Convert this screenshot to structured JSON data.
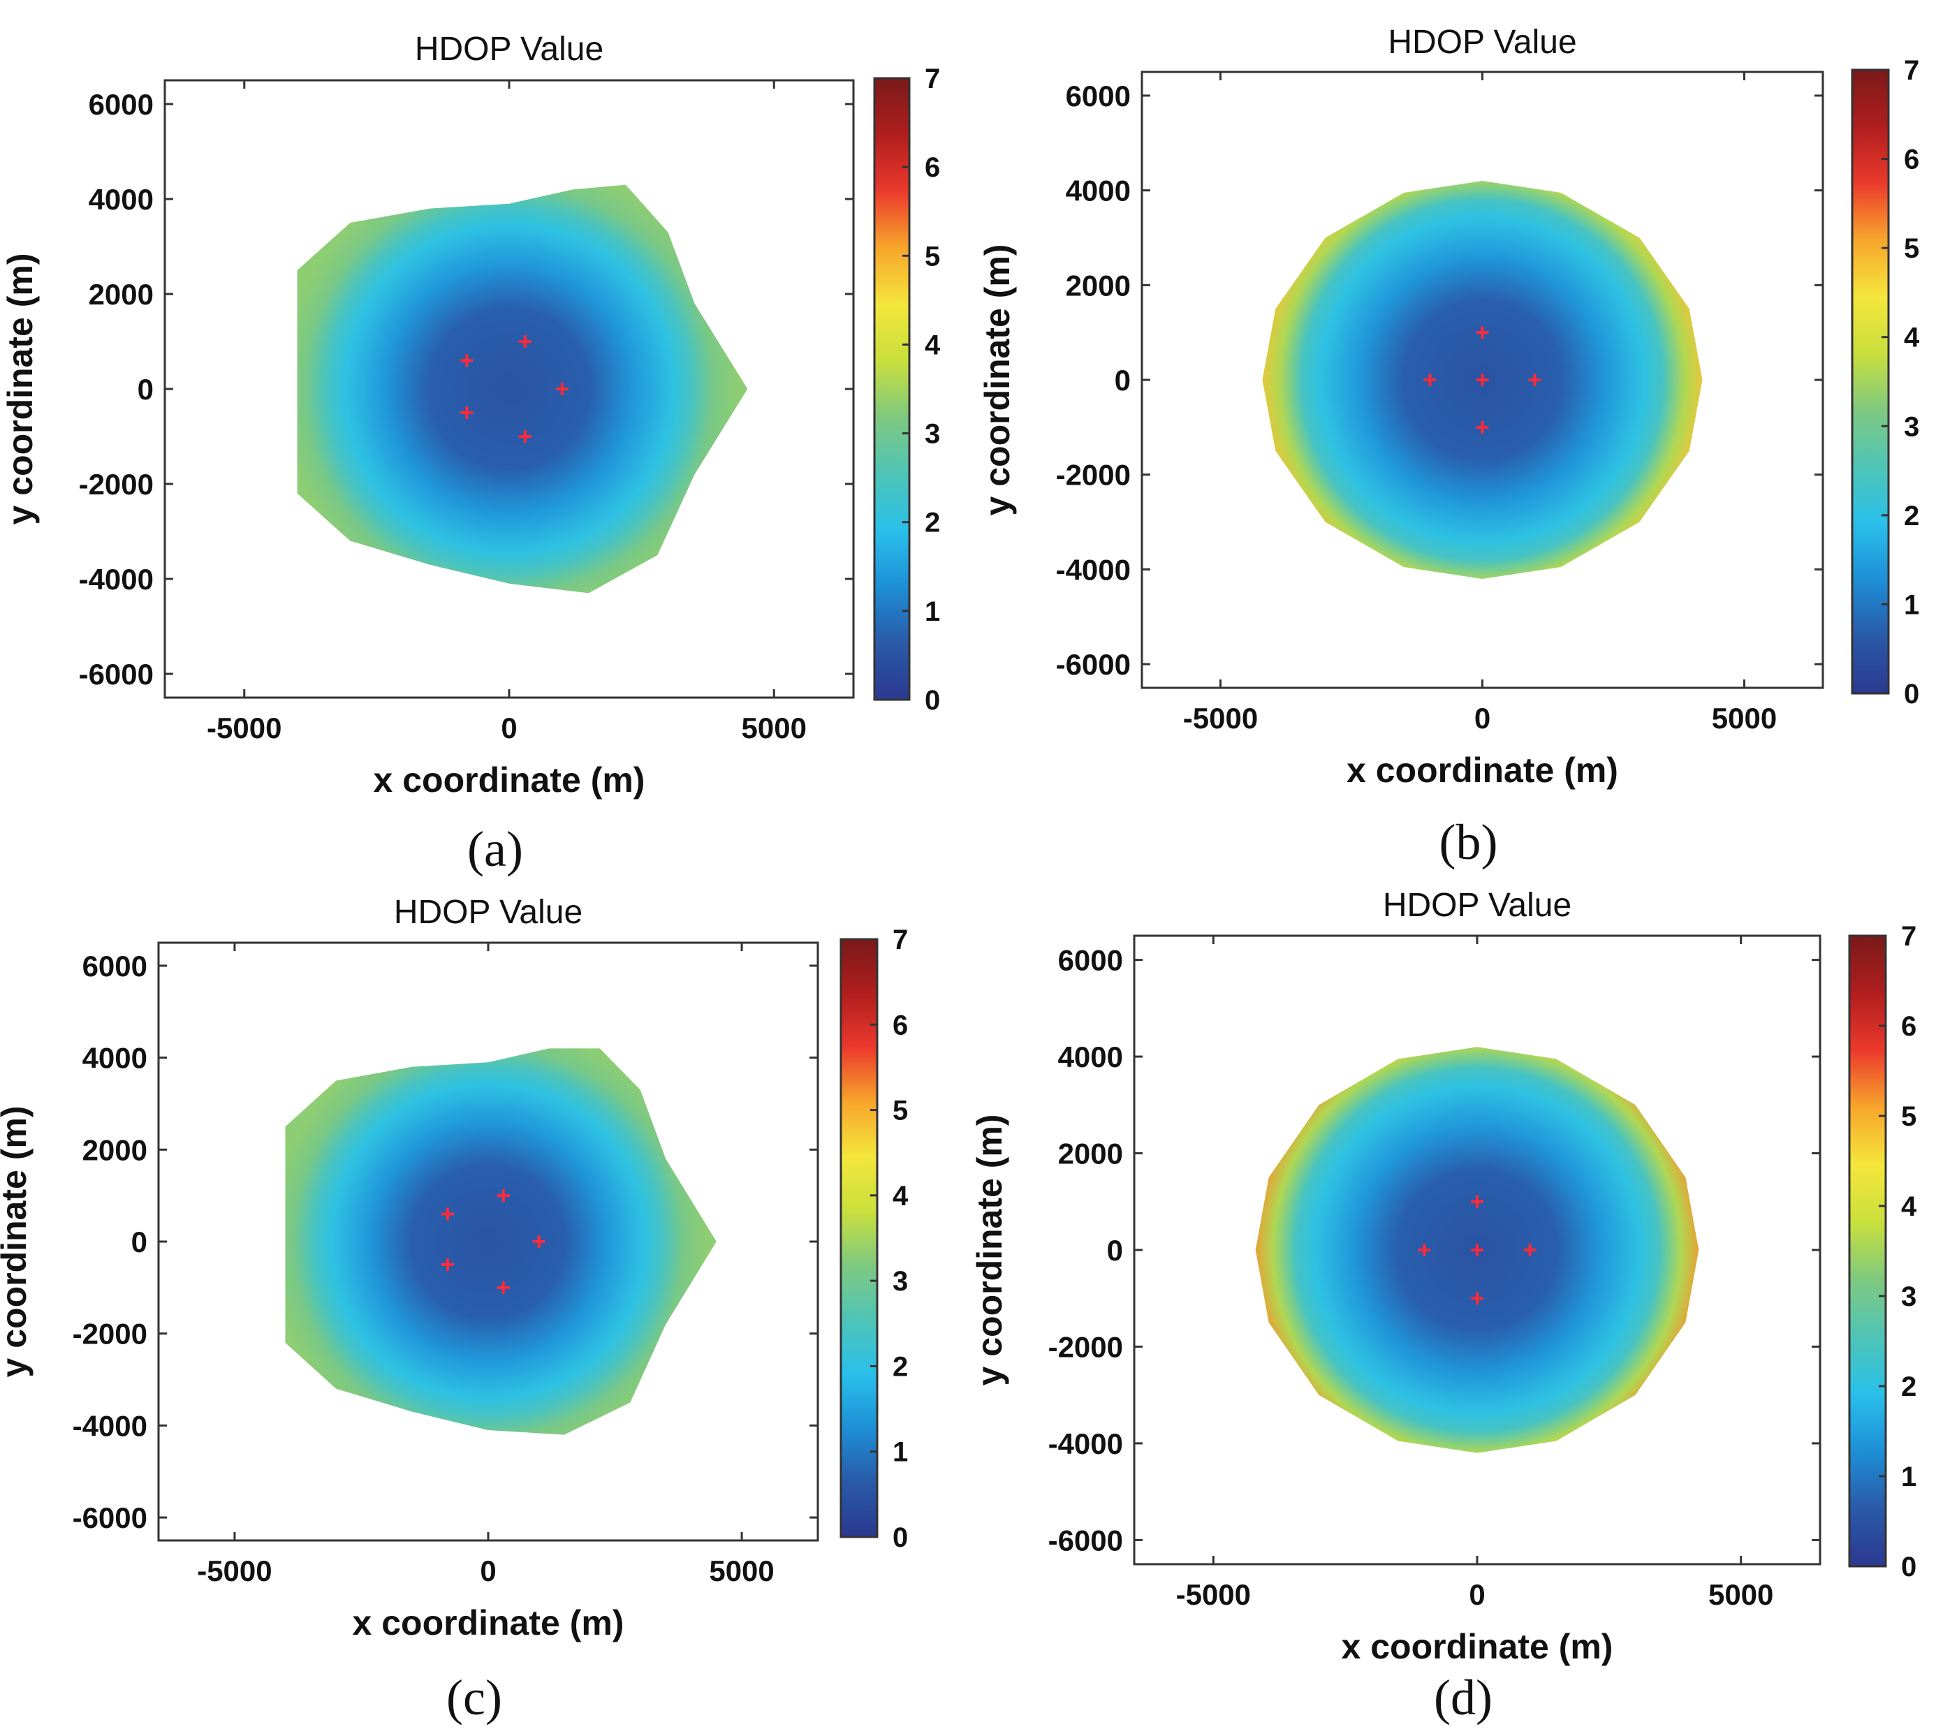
{
  "colors": {
    "colormap": [
      "#2b3990",
      "#2a5aa8",
      "#1e8fd6",
      "#29c0ea",
      "#4fc4b6",
      "#7fc97f",
      "#c9df3c",
      "#f4e63b",
      "#f7a62c",
      "#ec3a2d",
      "#b01e1e",
      "#7a1a1a"
    ],
    "receiver_marker": "#ff2a3a",
    "axis": "#333333"
  },
  "panels": [
    {
      "id": "a",
      "caption": "(a)",
      "chart_data": {
        "type": "heatmap",
        "title": "HDOP Value",
        "xlabel": "x coordinate (m)",
        "ylabel": "y coordinate (m)",
        "xlim": [
          -6500,
          6500
        ],
        "ylim": [
          -6500,
          6500
        ],
        "xticks": [
          -5000,
          0,
          5000
        ],
        "yticks": [
          6000,
          4000,
          2000,
          0,
          -2000,
          -4000,
          -6000
        ],
        "colorbar": {
          "min": 0,
          "max": 7,
          "ticks": [
            7,
            6,
            5,
            4,
            3,
            2,
            1,
            0
          ]
        },
        "coverage_boundary_points": [
          [
            -4000,
            2500
          ],
          [
            -3000,
            3500
          ],
          [
            -1500,
            3800
          ],
          [
            0,
            3900
          ],
          [
            1200,
            4200
          ],
          [
            2200,
            4300
          ],
          [
            3000,
            3300
          ],
          [
            3500,
            1800
          ],
          [
            4500,
            0
          ],
          [
            3500,
            -1800
          ],
          [
            2800,
            -3500
          ],
          [
            1500,
            -4300
          ],
          [
            0,
            -4100
          ],
          [
            -1500,
            -3700
          ],
          [
            -3000,
            -3200
          ],
          [
            -4000,
            -2200
          ],
          [
            -4000,
            0
          ]
        ],
        "hdop_model": {
          "center_hdop": 0.5,
          "edge_hdop": 3.1,
          "max_hdop": 3.3,
          "inner_shape": "rounded-square"
        },
        "receivers": [
          [
            -800,
            600
          ],
          [
            300,
            1000
          ],
          [
            1000,
            0
          ],
          [
            -800,
            -500
          ],
          [
            300,
            -1000
          ]
        ],
        "marker_symbol": "+"
      }
    },
    {
      "id": "b",
      "caption": "(b)",
      "chart_data": {
        "type": "heatmap",
        "title": "HDOP Value",
        "xlabel": "x coordinate (m)",
        "ylabel": "y coordinate (m)",
        "xlim": [
          -6500,
          6500
        ],
        "ylim": [
          -6500,
          6500
        ],
        "xticks": [
          -5000,
          0,
          5000
        ],
        "yticks": [
          6000,
          4000,
          2000,
          0,
          -2000,
          -4000,
          -6000
        ],
        "colorbar": {
          "min": 0,
          "max": 7,
          "ticks": [
            7,
            6,
            5,
            4,
            3,
            2,
            1,
            0
          ]
        },
        "coverage_boundary_points": [
          [
            0,
            4200
          ],
          [
            1500,
            3950
          ],
          [
            3000,
            3000
          ],
          [
            3950,
            1500
          ],
          [
            4200,
            0
          ],
          [
            3950,
            -1500
          ],
          [
            3000,
            -3000
          ],
          [
            1500,
            -3950
          ],
          [
            0,
            -4200
          ],
          [
            -1500,
            -3950
          ],
          [
            -3000,
            -3000
          ],
          [
            -3950,
            -1500
          ],
          [
            -4200,
            0
          ],
          [
            -3950,
            1500
          ],
          [
            -3000,
            3000
          ],
          [
            -1500,
            3950
          ]
        ],
        "hdop_model": {
          "center_hdop": 0.5,
          "edge_hdop": 3.6,
          "max_hdop": 4.8,
          "inner_shape": "rounded-square"
        },
        "receivers": [
          [
            0,
            1000
          ],
          [
            -1000,
            0
          ],
          [
            0,
            0
          ],
          [
            1000,
            0
          ],
          [
            0,
            -1000
          ]
        ],
        "marker_symbol": "+"
      }
    },
    {
      "id": "c",
      "caption": "(c)",
      "chart_data": {
        "type": "heatmap",
        "title": "HDOP Value",
        "xlabel": "x coordinate (m)",
        "ylabel": "y coordinate (m)",
        "xlim": [
          -6500,
          6500
        ],
        "ylim": [
          -6500,
          6500
        ],
        "xticks": [
          -5000,
          0,
          5000
        ],
        "yticks": [
          6000,
          4000,
          2000,
          0,
          -2000,
          -4000,
          -6000
        ],
        "colorbar": {
          "min": 0,
          "max": 7,
          "ticks": [
            7,
            6,
            5,
            4,
            3,
            2,
            1,
            0
          ]
        },
        "coverage_boundary_points": [
          [
            -4000,
            2500
          ],
          [
            -3000,
            3500
          ],
          [
            -1500,
            3800
          ],
          [
            0,
            3900
          ],
          [
            1200,
            4200
          ],
          [
            2200,
            4200
          ],
          [
            3000,
            3300
          ],
          [
            3500,
            1800
          ],
          [
            4500,
            0
          ],
          [
            3500,
            -1800
          ],
          [
            2800,
            -3500
          ],
          [
            1500,
            -4200
          ],
          [
            0,
            -4100
          ],
          [
            -1500,
            -3700
          ],
          [
            -3000,
            -3200
          ],
          [
            -4000,
            -2200
          ],
          [
            -4000,
            0
          ]
        ],
        "hdop_model": {
          "center_hdop": 0.5,
          "edge_hdop": 3.1,
          "max_hdop": 3.3,
          "inner_shape": "rounded-square"
        },
        "receivers": [
          [
            -800,
            600
          ],
          [
            300,
            1000
          ],
          [
            1000,
            0
          ],
          [
            -800,
            -500
          ],
          [
            300,
            -1000
          ]
        ],
        "marker_symbol": "+"
      }
    },
    {
      "id": "d",
      "caption": "(d)",
      "chart_data": {
        "type": "heatmap",
        "title": "HDOP Value",
        "xlabel": "x coordinate (m)",
        "ylabel": "y coordinate (m)",
        "xlim": [
          -6500,
          6500
        ],
        "ylim": [
          -6500,
          6500
        ],
        "xticks": [
          -5000,
          0,
          5000
        ],
        "yticks": [
          6000,
          4000,
          2000,
          0,
          -2000,
          -4000,
          -6000
        ],
        "colorbar": {
          "min": 0,
          "max": 7,
          "ticks": [
            7,
            6,
            5,
            4,
            3,
            2,
            1,
            0
          ]
        },
        "coverage_boundary_points": [
          [
            0,
            4200
          ],
          [
            1500,
            3950
          ],
          [
            3000,
            3000
          ],
          [
            3950,
            1500
          ],
          [
            4200,
            0
          ],
          [
            3950,
            -1500
          ],
          [
            3000,
            -3000
          ],
          [
            1500,
            -3950
          ],
          [
            0,
            -4200
          ],
          [
            -1500,
            -3950
          ],
          [
            -3000,
            -3000
          ],
          [
            -3950,
            -1500
          ],
          [
            -4200,
            0
          ],
          [
            -3950,
            1500
          ],
          [
            -3000,
            3000
          ],
          [
            -1500,
            3950
          ]
        ],
        "hdop_model": {
          "center_hdop": 0.5,
          "edge_hdop": 3.6,
          "max_hdop": 5.2,
          "inner_shape": "rounded-square"
        },
        "receivers": [
          [
            0,
            1000
          ],
          [
            -1000,
            0
          ],
          [
            0,
            0
          ],
          [
            1000,
            0
          ],
          [
            0,
            -1000
          ]
        ],
        "marker_symbol": "+"
      }
    }
  ]
}
